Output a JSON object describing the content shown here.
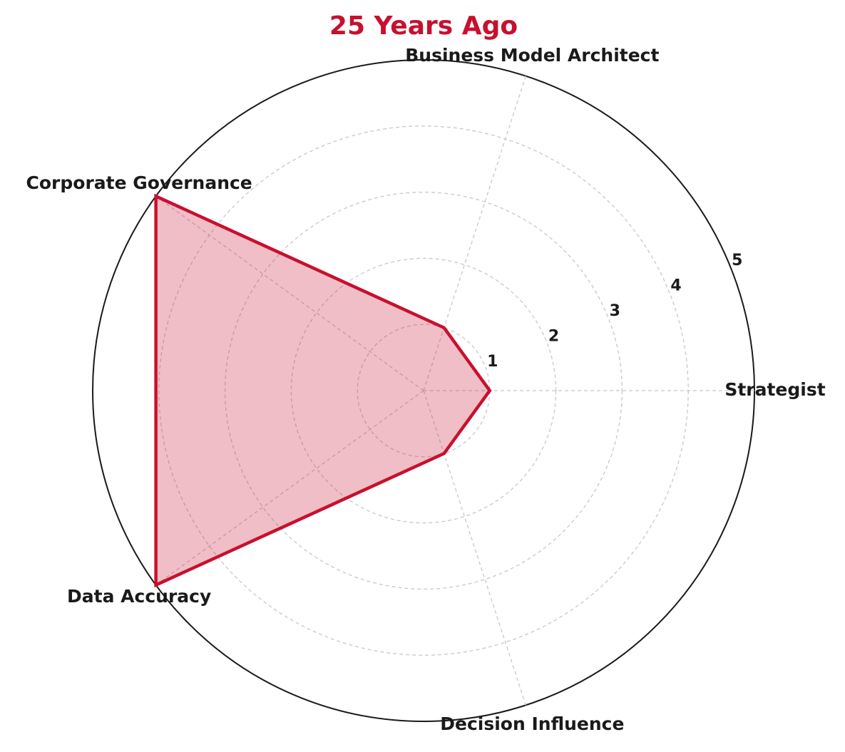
{
  "chart_data": {
    "type": "radar",
    "title": "25 Years Ago",
    "categories": [
      "Strategist",
      "Business Model Architect",
      "Corporate Governance",
      "Data Accuracy",
      "Decision Influence"
    ],
    "values": [
      1,
      1,
      5,
      5,
      1
    ],
    "color": "#c8102e",
    "ylim": [
      0,
      5
    ],
    "yticks": [
      1,
      2,
      3,
      4,
      5
    ],
    "grid": true
  }
}
